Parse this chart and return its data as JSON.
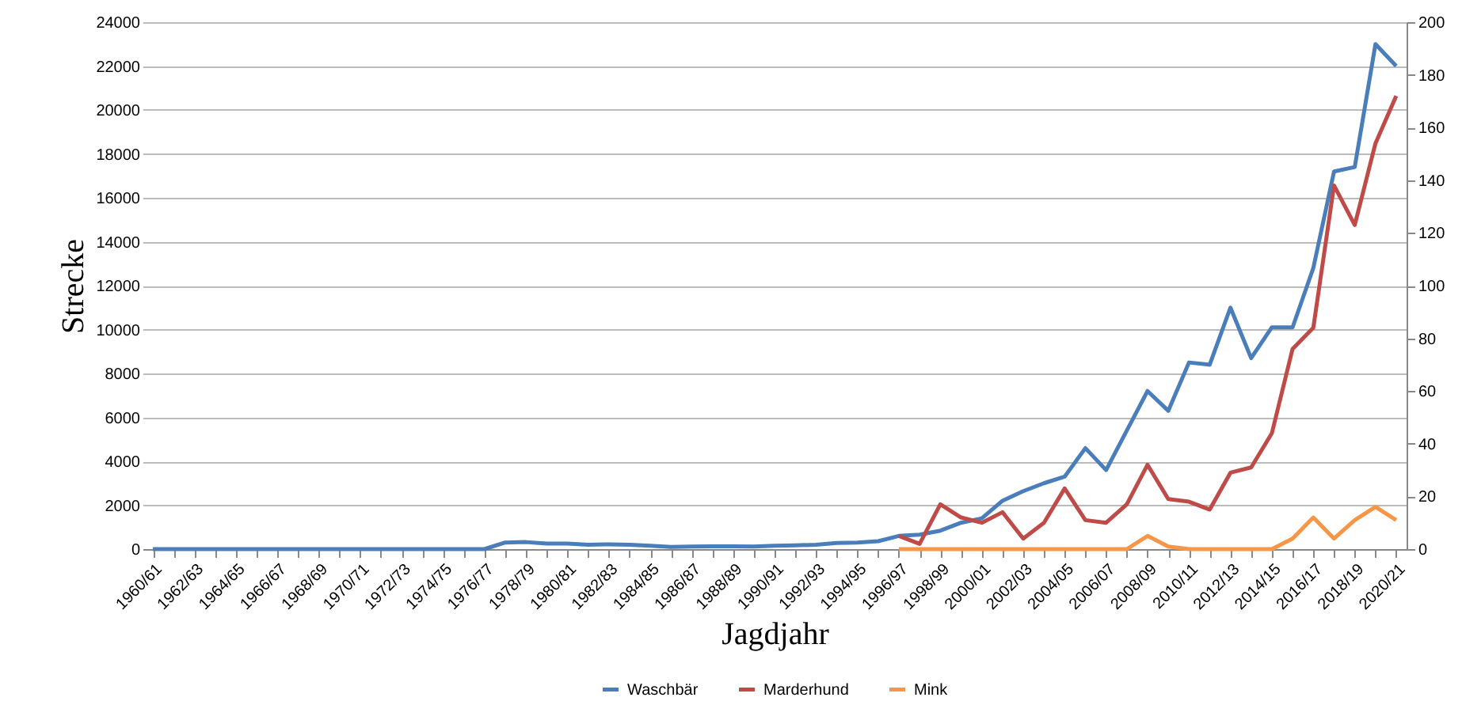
{
  "chart_data": {
    "type": "line",
    "xlabel": "Jagdjahr",
    "ylabel": "Strecke",
    "categories": [
      "1960/61",
      null,
      "1962/63",
      null,
      "1964/65",
      null,
      "1966/67",
      null,
      "1968/69",
      null,
      "1970/71",
      null,
      "1972/73",
      null,
      "1974/75",
      null,
      "1976/77",
      null,
      "1978/79",
      null,
      "1980/81",
      null,
      "1982/83",
      null,
      "1984/85",
      null,
      "1986/87",
      null,
      "1988/89",
      null,
      "1990/91",
      null,
      "1992/93",
      null,
      "1994/95",
      null,
      "1996/97",
      null,
      "1998/99",
      null,
      "2000/01",
      null,
      "2002/03",
      null,
      "2004/05",
      null,
      "2006/07",
      null,
      "2008/09",
      null,
      "2010/11",
      null,
      "2012/13",
      null,
      "2014/15",
      null,
      "2016/17",
      null,
      "2018/19",
      null,
      "2020/21"
    ],
    "series": [
      {
        "name": "Waschbär",
        "color": "#4a7ebb",
        "values": [
          0,
          0,
          0,
          0,
          0,
          0,
          0,
          0,
          0,
          0,
          0,
          0,
          0,
          0,
          0,
          0,
          0,
          300,
          320,
          250,
          250,
          200,
          220,
          200,
          150,
          100,
          120,
          130,
          130,
          120,
          150,
          170,
          200,
          280,
          300,
          360,
          600,
          660,
          840,
          1200,
          1400,
          2200,
          2640,
          3000,
          3300,
          4600,
          3600,
          5400,
          7200,
          6300,
          8500,
          8400,
          11000,
          8700,
          10100,
          10100,
          12800,
          17200,
          17400,
          23000,
          22000
        ]
      },
      {
        "name": "Marderhund",
        "color": "#be4b48",
        "axis": "y2",
        "values": [
          null,
          null,
          null,
          null,
          null,
          null,
          null,
          null,
          null,
          null,
          null,
          null,
          null,
          null,
          null,
          null,
          null,
          null,
          null,
          null,
          null,
          null,
          null,
          null,
          null,
          null,
          null,
          null,
          null,
          null,
          null,
          null,
          null,
          null,
          null,
          null,
          5,
          2,
          17,
          12,
          10,
          14,
          4,
          10,
          23,
          11,
          10,
          17,
          32,
          19,
          18,
          15,
          29,
          31,
          44,
          76,
          84,
          138,
          123,
          154,
          172
        ]
      },
      {
        "name": "Mink",
        "color": "#f79646",
        "axis": "y2",
        "values": [
          null,
          null,
          null,
          null,
          null,
          null,
          null,
          null,
          null,
          null,
          null,
          null,
          null,
          null,
          null,
          null,
          null,
          null,
          null,
          null,
          null,
          null,
          null,
          null,
          null,
          null,
          null,
          null,
          null,
          null,
          null,
          null,
          null,
          null,
          null,
          null,
          0,
          0,
          0,
          0,
          0,
          0,
          0,
          0,
          0,
          0,
          0,
          0,
          5,
          1,
          0,
          0,
          0,
          0,
          0,
          4,
          12,
          4,
          11,
          16,
          11
        ]
      }
    ],
    "ylim": [
      0,
      24000
    ],
    "yticks": [
      0,
      2000,
      4000,
      6000,
      8000,
      10000,
      12000,
      14000,
      16000,
      18000,
      20000,
      22000,
      24000
    ],
    "y2lim": [
      0,
      200
    ],
    "y2ticks": [
      0,
      20,
      40,
      60,
      80,
      100,
      120,
      140,
      160,
      180,
      200
    ],
    "grid": "y",
    "legend": "bottom"
  }
}
